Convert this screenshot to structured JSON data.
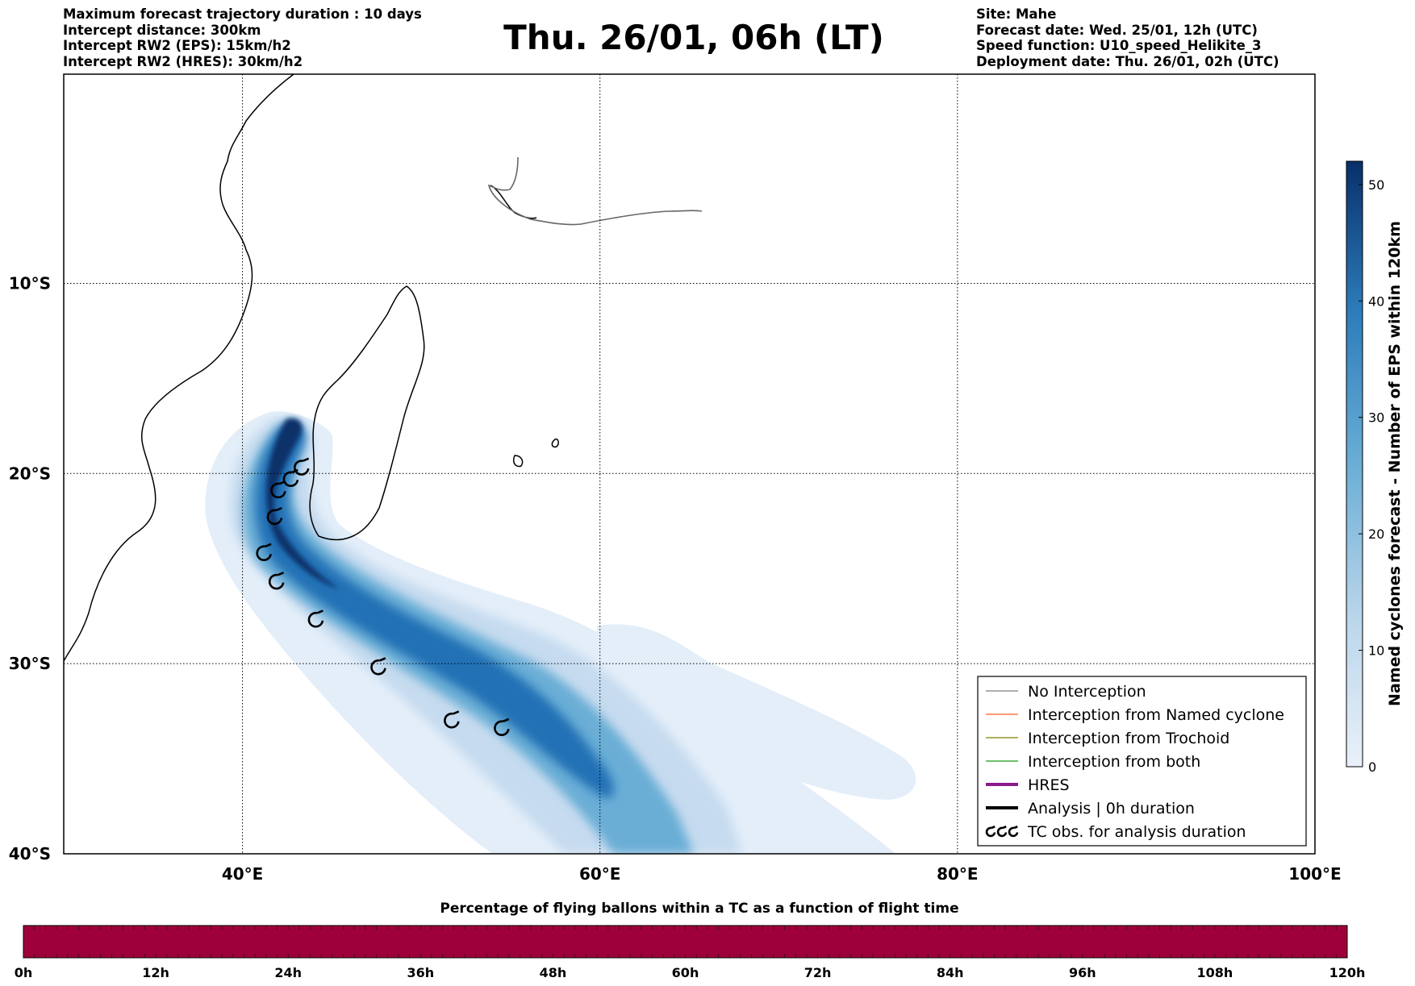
{
  "header": {
    "left_lines": [
      "Maximum forecast trajectory duration : 10 days",
      "Intercept distance: 300km",
      "Intercept RW2 (EPS):  15km/h2",
      "Intercept RW2 (HRES): 30km/h2"
    ],
    "title": "Thu. 26/01, 06h (LT)",
    "right_lines": [
      "Site: Mahe",
      "Forecast date: Wed. 25/01, 12h (UTC)",
      "Speed function: U10_speed_Helikite_3",
      "Deployment date: Thu. 26/01, 02h (UTC)"
    ]
  },
  "map": {
    "lon_range": [
      30,
      100
    ],
    "lat_range": [
      -40,
      1
    ],
    "lon_ticks": [
      {
        "value": 40,
        "label": "40°E"
      },
      {
        "value": 60,
        "label": "60°E"
      },
      {
        "value": 80,
        "label": "80°E"
      },
      {
        "value": 100,
        "label": "100°E"
      }
    ],
    "lat_ticks": [
      {
        "value": -10,
        "label": "10°S"
      },
      {
        "value": -20,
        "label": "20°S"
      },
      {
        "value": -30,
        "label": "30°S"
      },
      {
        "value": -40,
        "label": "40°S"
      }
    ],
    "grid": true,
    "tc_obs": [
      {
        "lon": 43.3,
        "lat": -19.7
      },
      {
        "lon": 42.7,
        "lat": -20.3
      },
      {
        "lon": 42.0,
        "lat": -20.9
      },
      {
        "lon": 41.8,
        "lat": -22.3
      },
      {
        "lon": 41.2,
        "lat": -24.2
      },
      {
        "lon": 41.9,
        "lat": -25.7
      },
      {
        "lon": 44.1,
        "lat": -27.7
      },
      {
        "lon": 47.6,
        "lat": -30.2
      },
      {
        "lon": 51.7,
        "lat": -33.0
      },
      {
        "lon": 54.5,
        "lat": -33.4
      }
    ]
  },
  "legend": {
    "placement": "lower-right",
    "items": [
      {
        "label": "No Interception",
        "color": "#7f7f7f",
        "kind": "line"
      },
      {
        "label": "Interception from Named cyclone",
        "color": "#ff5a1e",
        "kind": "line"
      },
      {
        "label": "Interception from Trochoid",
        "color": "#808000",
        "kind": "line"
      },
      {
        "label": "Interception from both",
        "color": "#1a9a1a",
        "kind": "line"
      },
      {
        "label": "HRES",
        "color": "#8b1a8b",
        "kind": "thick"
      },
      {
        "label": "Analysis | 0h duration",
        "color": "#000000",
        "kind": "thick"
      },
      {
        "label": "TC obs. for analysis duration",
        "color": "#000000",
        "kind": "cyclone"
      }
    ]
  },
  "colorbar": {
    "label": "Named cyclones forecast - Number of EPS within 120km",
    "range": [
      0,
      52
    ],
    "ticks": [
      "0",
      "10",
      "20",
      "30",
      "40",
      "50"
    ],
    "color_low": "#e8f0fa",
    "color_high": "#08306b"
  },
  "bottom_bar": {
    "title": "Percentage of flying ballons within a TC as a function of flight time",
    "color": "#9e003a",
    "ticks": [
      "0h",
      "12h",
      "24h",
      "36h",
      "48h",
      "60h",
      "72h",
      "84h",
      "96h",
      "108h",
      "120h"
    ]
  }
}
